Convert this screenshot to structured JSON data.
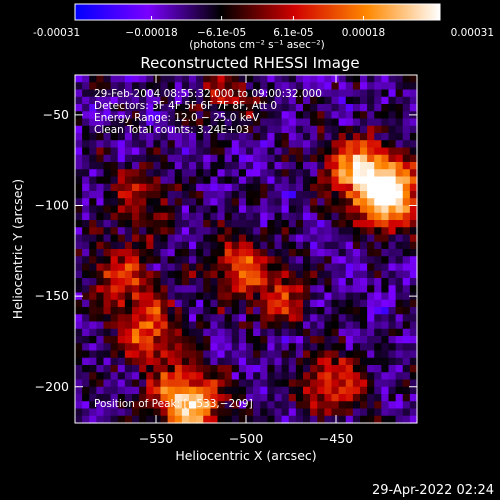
{
  "chart_data": {
    "type": "heatmap",
    "title": "Reconstructed RHESSI Image",
    "xlabel": "Heliocentric X (arcsec)",
    "ylabel": "Heliocentric Y (arcsec)",
    "xlim": [
      -595,
      -405
    ],
    "ylim": [
      -220,
      -28
    ],
    "xticks": [
      -550,
      -500,
      -450
    ],
    "yticks": [
      -200,
      -150,
      -100,
      -50
    ],
    "xtick_labels": [
      "−550",
      "−500",
      "−450"
    ],
    "ytick_labels": [
      "−200",
      "−150",
      "−100",
      "−50"
    ],
    "colorbar": {
      "range": [
        -0.00031,
        0.00031
      ],
      "ticks": [
        -0.00031,
        -0.00018,
        -6.1e-05,
        6.1e-05,
        0.00018,
        0.00031
      ],
      "tick_labels": [
        "-0.00031",
        "−0.00018",
        "−6.1e-05",
        "6.1e-05",
        "0.00018",
        "0.00031"
      ],
      "unit_label": "(photons cm⁻² s⁻¹ asec⁻²)",
      "colormap": [
        "#0000ff",
        "#7a00ff",
        "#000000",
        "#d00000",
        "#ff8800",
        "#ffffff"
      ]
    },
    "annotations": [
      "29-Feb-2004 08:55:32.000 to 09:00:32.000",
      "Detectors: 3F 4F 5F 6F 7F 8F, Att 0",
      "Energy Range: 12.0 − 25.0 keV",
      "Clean     Total counts: 3.24E+03"
    ],
    "peak_label": "Position of Peak: [−533,−209]",
    "peak_position": [
      -533,
      -209
    ],
    "sources": [
      {
        "x": -420,
        "y": -95,
        "value": 0.00031
      },
      {
        "x": -438,
        "y": -80,
        "value": 0.00024
      },
      {
        "x": -533,
        "y": -209,
        "value": 0.00031
      },
      {
        "x": -555,
        "y": -170,
        "value": 0.00018
      },
      {
        "x": -570,
        "y": -140,
        "value": 0.00015
      },
      {
        "x": -505,
        "y": -135,
        "value": 0.00016
      },
      {
        "x": -452,
        "y": -198,
        "value": 0.00017
      },
      {
        "x": -480,
        "y": -150,
        "value": 0.00012
      },
      {
        "x": -510,
        "y": -40,
        "value": 0.0001
      },
      {
        "x": -560,
        "y": -95,
        "value": 0.00012
      }
    ]
  },
  "timestamp": "29-Apr-2022 02:24"
}
